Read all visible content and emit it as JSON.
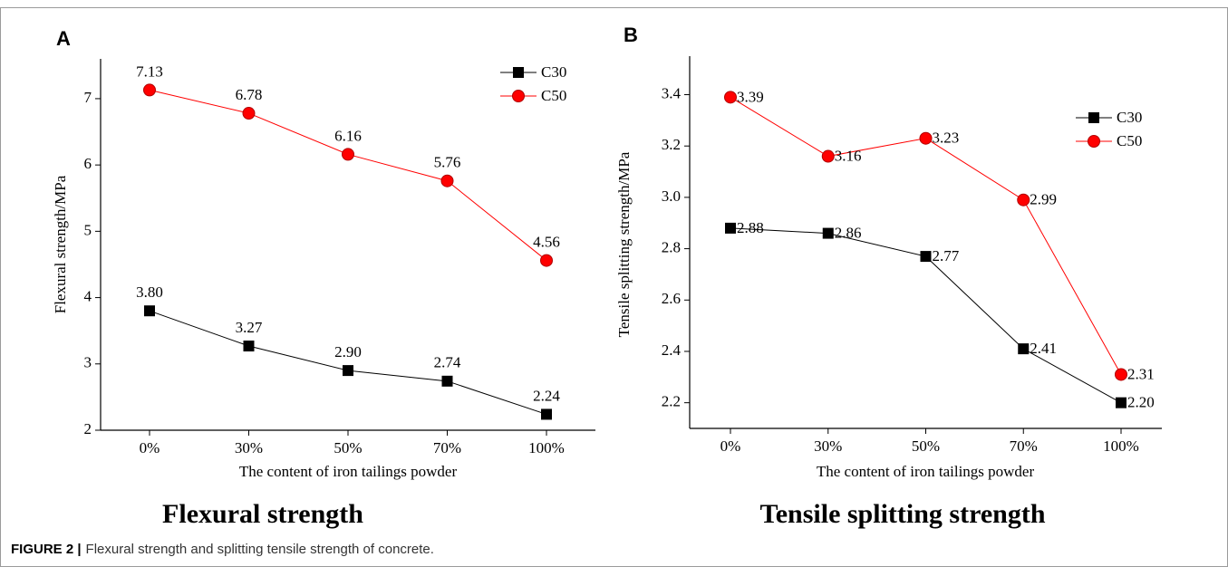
{
  "caption": {
    "label": "FIGURE 2 |",
    "text": "Flexural strength and splitting tensile strength of concrete."
  },
  "chart_data": [
    {
      "type": "line",
      "panel": "A",
      "title": "Flexural strength",
      "x_label": "The content of iron tailings powder",
      "y_label": "Flexural strength/MPa",
      "categories": [
        "0%",
        "30%",
        "50%",
        "70%",
        "100%"
      ],
      "ylim": [
        2,
        7.6
      ],
      "yticks": [
        2,
        3,
        4,
        5,
        6,
        7
      ],
      "legend": "upper right",
      "series": [
        {
          "name": "C30",
          "color": "#000000",
          "marker": "square",
          "values": [
            3.8,
            3.27,
            2.9,
            2.74,
            2.24
          ],
          "value_labels": [
            "3.80",
            "3.27",
            "2.90",
            "2.74",
            "2.24"
          ]
        },
        {
          "name": "C50",
          "color": "#ff0000",
          "marker": "circle",
          "values": [
            7.13,
            6.78,
            6.16,
            5.76,
            4.56
          ],
          "value_labels": [
            "7.13",
            "6.78",
            "6.16",
            "5.76",
            "4.56"
          ]
        }
      ]
    },
    {
      "type": "line",
      "panel": "B",
      "title": "Tensile splitting strength",
      "x_label": "The content of iron tailings powder",
      "y_label": "Tensile splitting strength/MPa",
      "categories": [
        "0%",
        "30%",
        "50%",
        "70%",
        "100%"
      ],
      "ylim": [
        2.1,
        3.55
      ],
      "yticks": [
        2.2,
        2.4,
        2.6,
        2.8,
        {
          "value": 3,
          "label": "3.0"
        },
        3.2,
        3.4
      ],
      "legend": "upper right",
      "series": [
        {
          "name": "C30",
          "color": "#000000",
          "marker": "square",
          "values": [
            2.88,
            2.86,
            2.77,
            2.41,
            2.2
          ],
          "value_labels": [
            "2.88",
            "2.86",
            "2.77",
            "2.41",
            "2.20"
          ]
        },
        {
          "name": "C50",
          "color": "#ff0000",
          "marker": "circle",
          "values": [
            3.39,
            3.16,
            3.23,
            2.99,
            2.31
          ],
          "value_labels": [
            "3.39",
            "3.16",
            "3.23",
            "2.99",
            "2.31"
          ]
        }
      ]
    }
  ]
}
